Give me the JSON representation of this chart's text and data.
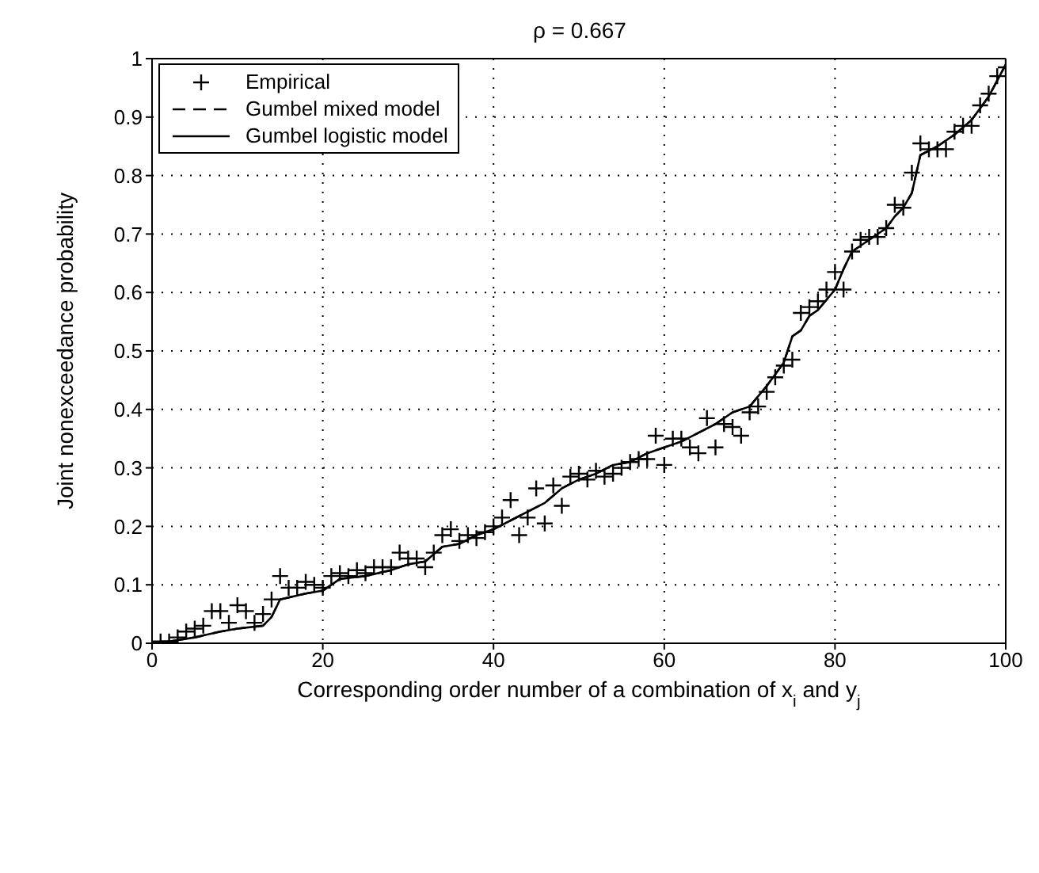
{
  "chart_data": {
    "type": "line",
    "title": "ρ = 0.667",
    "xlabel": "Corresponding order number of a combination of x$_{i}$ and y$_{j}$",
    "ylabel": "Joint nonexceedance probability",
    "xlim": [
      0,
      100
    ],
    "xticks": [
      0,
      20,
      40,
      60,
      80,
      100
    ],
    "ylim": [
      0,
      1
    ],
    "yticks": [
      0,
      0.1,
      0.2,
      0.3,
      0.4,
      0.5,
      0.6,
      0.7,
      0.8,
      0.9,
      1
    ],
    "grid": true,
    "legend": "top left",
    "series": [
      {
        "name": "Empirical",
        "type": "scatter",
        "marker": "cross",
        "color": "#000000",
        "x": [
          1,
          2,
          3,
          4,
          5,
          6,
          7,
          8,
          9,
          10,
          11,
          12,
          13,
          14,
          15,
          16,
          17,
          18,
          19,
          20,
          21,
          22,
          23,
          24,
          25,
          26,
          27,
          28,
          29,
          30,
          31,
          32,
          33,
          34,
          35,
          36,
          37,
          38,
          39,
          40,
          41,
          42,
          43,
          44,
          45,
          46,
          47,
          48,
          49,
          50,
          51,
          52,
          53,
          54,
          55,
          56,
          57,
          58,
          59,
          60,
          61,
          62,
          63,
          64,
          65,
          66,
          67,
          68,
          69,
          70,
          71,
          72,
          73,
          74,
          75,
          76,
          77,
          78,
          79,
          80,
          81,
          82,
          83,
          84,
          85,
          86,
          87,
          88,
          89,
          90,
          91,
          92,
          93,
          94,
          95,
          96,
          97,
          98,
          99,
          100
        ],
        "values": [
          0.003,
          0.003,
          0.01,
          0.02,
          0.025,
          0.03,
          0.055,
          0.055,
          0.035,
          0.065,
          0.055,
          0.035,
          0.05,
          0.075,
          0.115,
          0.095,
          0.095,
          0.105,
          0.1,
          0.095,
          0.115,
          0.12,
          0.115,
          0.125,
          0.12,
          0.13,
          0.13,
          0.13,
          0.155,
          0.145,
          0.145,
          0.13,
          0.155,
          0.185,
          0.195,
          0.175,
          0.185,
          0.18,
          0.19,
          0.2,
          0.215,
          0.245,
          0.185,
          0.215,
          0.265,
          0.205,
          0.27,
          0.235,
          0.285,
          0.29,
          0.28,
          0.295,
          0.285,
          0.29,
          0.3,
          0.31,
          0.315,
          0.315,
          0.355,
          0.305,
          0.35,
          0.35,
          0.335,
          0.325,
          0.385,
          0.335,
          0.375,
          0.37,
          0.355,
          0.395,
          0.405,
          0.43,
          0.455,
          0.475,
          0.485,
          0.565,
          0.575,
          0.585,
          0.605,
          0.635,
          0.605,
          0.67,
          0.69,
          0.695,
          0.695,
          0.71,
          0.75,
          0.745,
          0.805,
          0.855,
          0.845,
          0.845,
          0.845,
          0.875,
          0.885,
          0.885,
          0.92,
          0.94,
          0.97,
          0.985
        ]
      },
      {
        "name": "Gumbel mixed model",
        "type": "line",
        "line_style": "dashed",
        "color": "#000000",
        "x": [
          0,
          2,
          5,
          8,
          10,
          13,
          14,
          15,
          18,
          20,
          22,
          25,
          28,
          30,
          32,
          34,
          36,
          38,
          40,
          42,
          44,
          46,
          48,
          50,
          52,
          54,
          56,
          58,
          60,
          62,
          64,
          66,
          68,
          70,
          72,
          74,
          75,
          76,
          77,
          78,
          80,
          81,
          82,
          84,
          86,
          87,
          88,
          89,
          90,
          92,
          94,
          96,
          98,
          100
        ],
        "values": [
          0,
          0.003,
          0.01,
          0.02,
          0.025,
          0.03,
          0.045,
          0.075,
          0.085,
          0.09,
          0.11,
          0.115,
          0.125,
          0.135,
          0.14,
          0.165,
          0.17,
          0.185,
          0.195,
          0.21,
          0.225,
          0.24,
          0.265,
          0.28,
          0.29,
          0.305,
          0.31,
          0.325,
          0.335,
          0.345,
          0.36,
          0.375,
          0.395,
          0.405,
          0.44,
          0.48,
          0.525,
          0.535,
          0.56,
          0.57,
          0.605,
          0.64,
          0.67,
          0.69,
          0.71,
          0.73,
          0.745,
          0.77,
          0.835,
          0.85,
          0.87,
          0.895,
          0.935,
          0.99
        ]
      },
      {
        "name": "Gumbel logistic model",
        "type": "line",
        "line_style": "solid",
        "color": "#000000",
        "x": [
          0,
          2,
          5,
          8,
          10,
          13,
          14,
          15,
          18,
          20,
          22,
          25,
          28,
          30,
          32,
          34,
          36,
          38,
          40,
          42,
          44,
          46,
          48,
          50,
          52,
          54,
          56,
          58,
          60,
          62,
          64,
          66,
          68,
          70,
          72,
          74,
          75,
          76,
          77,
          78,
          80,
          81,
          82,
          84,
          86,
          87,
          88,
          89,
          90,
          92,
          94,
          96,
          98,
          100
        ],
        "values": [
          0,
          0.003,
          0.01,
          0.02,
          0.025,
          0.03,
          0.045,
          0.075,
          0.085,
          0.09,
          0.11,
          0.115,
          0.125,
          0.135,
          0.14,
          0.165,
          0.17,
          0.185,
          0.195,
          0.21,
          0.225,
          0.24,
          0.265,
          0.28,
          0.29,
          0.305,
          0.31,
          0.325,
          0.335,
          0.345,
          0.36,
          0.375,
          0.395,
          0.405,
          0.44,
          0.48,
          0.525,
          0.535,
          0.56,
          0.57,
          0.605,
          0.64,
          0.67,
          0.69,
          0.71,
          0.73,
          0.745,
          0.77,
          0.835,
          0.85,
          0.87,
          0.895,
          0.935,
          0.99
        ]
      }
    ]
  }
}
